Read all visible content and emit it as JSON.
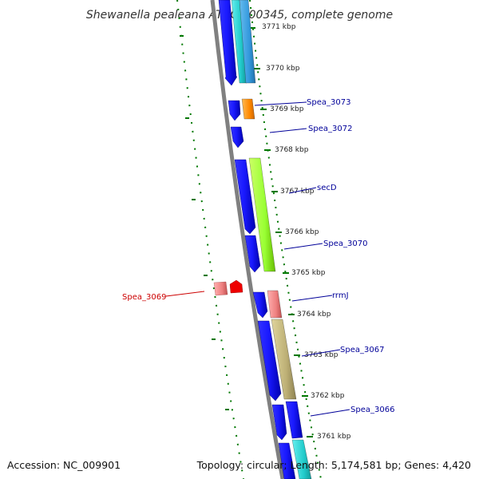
{
  "title": "Shewanella pealeana ATCC 700345, complete genome",
  "accession": "Accession: NC_009901",
  "summary": "Topology: circular; Length: 5,174,581 bp; Genes: 4,420",
  "ticks": [
    "3771 kbp",
    "3770 kbp",
    "3769 kbp",
    "3768 kbp",
    "3767 kbp",
    "3766 kbp",
    "3765 kbp",
    "3764 kbp",
    "3763 kbp",
    "3762 kbp",
    "3761 kbp"
  ],
  "gene_labels": [
    "Spea_3073",
    "Spea_3072",
    "secD",
    "Spea_3070",
    "Spea_3069",
    "rrmJ",
    "Spea_3067",
    "Spea_3066"
  ],
  "colors": {
    "backbone": "#808080",
    "cds": "#0000ee",
    "label_blue": "#000099",
    "label_red": "#cc0000",
    "tick_green": "#007700",
    "orange": "#ff8800",
    "lime": "#99ff33",
    "salmon": "#ee8080",
    "khaki": "#bdb076",
    "cyan": "#22cccc",
    "sky": "#3399dd",
    "red": "#ee0000"
  }
}
